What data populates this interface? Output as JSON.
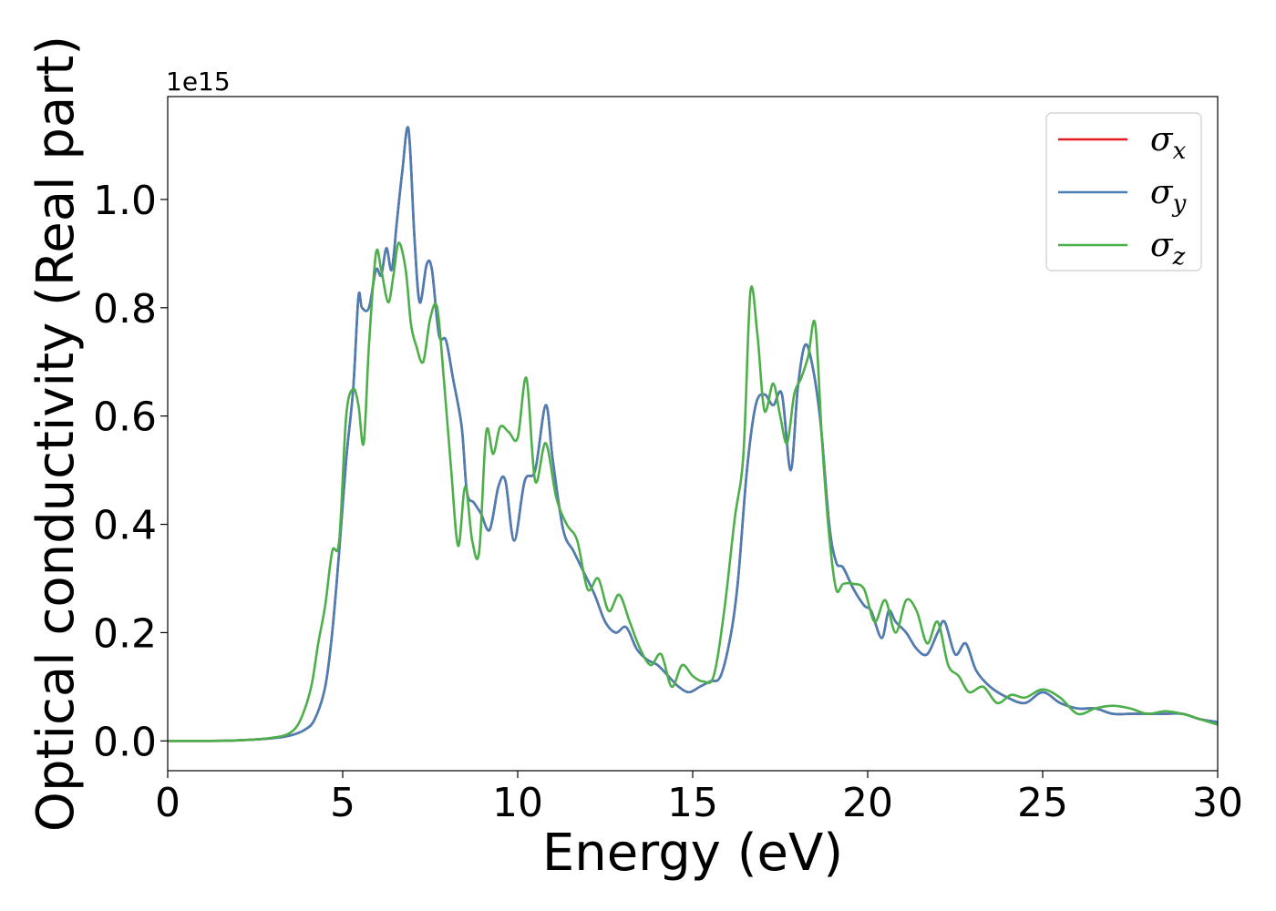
{
  "chart_data": {
    "type": "line",
    "xlabel": "Energy (eV)",
    "ylabel": "Optical conductivity (Real part)",
    "offset_text": "1e15",
    "xlim": [
      0,
      30
    ],
    "ylim": [
      -0.055,
      1.19
    ],
    "y_scale_factor": 1000000000000000.0,
    "xticks": [
      0,
      5,
      10,
      15,
      20,
      25,
      30
    ],
    "xtick_labels": [
      "0",
      "5",
      "10",
      "15",
      "20",
      "25",
      "30"
    ],
    "yticks": [
      0.0,
      0.2,
      0.4,
      0.6,
      0.8,
      1.0
    ],
    "ytick_labels": [
      "0.0",
      "0.2",
      "0.4",
      "0.6",
      "0.8",
      "1.0"
    ],
    "grid": false,
    "legend_position": "top-right",
    "series": [
      {
        "name": "σx",
        "symbol": "σ",
        "subscript": "x",
        "color": "#e41a1c",
        "x": [
          0,
          1,
          2,
          3,
          3.5,
          3.9,
          4.2,
          4.5,
          4.7,
          4.9,
          5.1,
          5.3,
          5.45,
          5.55,
          5.75,
          5.95,
          6.1,
          6.25,
          6.4,
          6.55,
          6.7,
          6.88,
          7.05,
          7.2,
          7.4,
          7.55,
          7.75,
          7.95,
          8.15,
          8.4,
          8.55,
          8.75,
          8.95,
          9.2,
          9.45,
          9.65,
          9.9,
          10.2,
          10.5,
          10.8,
          11.0,
          11.3,
          11.6,
          11.9,
          12.2,
          12.5,
          12.8,
          13.1,
          13.4,
          13.7,
          14.0,
          14.3,
          14.6,
          14.9,
          15.2,
          15.5,
          15.8,
          16.1,
          16.3,
          16.55,
          16.8,
          17.05,
          17.3,
          17.55,
          17.8,
          18.0,
          18.2,
          18.4,
          18.65,
          18.9,
          19.1,
          19.3,
          19.6,
          19.9,
          20.1,
          20.4,
          20.6,
          20.8,
          21.1,
          21.4,
          21.7,
          22.0,
          22.2,
          22.5,
          22.8,
          23.1,
          23.5,
          24.0,
          24.5,
          25.0,
          25.5,
          26.0,
          26.5,
          27.0,
          27.5,
          28.0,
          28.5,
          29.0,
          29.5,
          30.0
        ],
        "y": [
          0.0,
          0.0,
          0.001,
          0.005,
          0.01,
          0.02,
          0.04,
          0.1,
          0.2,
          0.35,
          0.52,
          0.65,
          0.82,
          0.8,
          0.8,
          0.87,
          0.86,
          0.91,
          0.87,
          0.96,
          1.05,
          1.13,
          0.93,
          0.81,
          0.88,
          0.87,
          0.75,
          0.74,
          0.67,
          0.58,
          0.46,
          0.44,
          0.42,
          0.39,
          0.47,
          0.48,
          0.37,
          0.48,
          0.5,
          0.62,
          0.52,
          0.39,
          0.35,
          0.31,
          0.27,
          0.22,
          0.2,
          0.21,
          0.17,
          0.15,
          0.14,
          0.12,
          0.1,
          0.09,
          0.1,
          0.11,
          0.12,
          0.2,
          0.3,
          0.5,
          0.62,
          0.64,
          0.62,
          0.64,
          0.5,
          0.65,
          0.73,
          0.7,
          0.59,
          0.4,
          0.33,
          0.32,
          0.28,
          0.25,
          0.24,
          0.19,
          0.24,
          0.22,
          0.2,
          0.17,
          0.16,
          0.2,
          0.22,
          0.16,
          0.18,
          0.13,
          0.1,
          0.08,
          0.07,
          0.09,
          0.07,
          0.06,
          0.06,
          0.05,
          0.05,
          0.05,
          0.05,
          0.05,
          0.04,
          0.035
        ]
      },
      {
        "name": "σy",
        "symbol": "σ",
        "subscript": "y",
        "color": "#4a7fb5",
        "x": [
          0,
          1,
          2,
          3,
          3.5,
          3.9,
          4.2,
          4.5,
          4.7,
          4.9,
          5.1,
          5.3,
          5.45,
          5.55,
          5.75,
          5.95,
          6.1,
          6.25,
          6.4,
          6.55,
          6.7,
          6.88,
          7.05,
          7.2,
          7.4,
          7.55,
          7.75,
          7.95,
          8.15,
          8.4,
          8.55,
          8.75,
          8.95,
          9.2,
          9.45,
          9.65,
          9.9,
          10.2,
          10.5,
          10.8,
          11.0,
          11.3,
          11.6,
          11.9,
          12.2,
          12.5,
          12.8,
          13.1,
          13.4,
          13.7,
          14.0,
          14.3,
          14.6,
          14.9,
          15.2,
          15.5,
          15.8,
          16.1,
          16.3,
          16.55,
          16.8,
          17.05,
          17.3,
          17.55,
          17.8,
          18.0,
          18.2,
          18.4,
          18.65,
          18.9,
          19.1,
          19.3,
          19.6,
          19.9,
          20.1,
          20.4,
          20.6,
          20.8,
          21.1,
          21.4,
          21.7,
          22.0,
          22.2,
          22.5,
          22.8,
          23.1,
          23.5,
          24.0,
          24.5,
          25.0,
          25.5,
          26.0,
          26.5,
          27.0,
          27.5,
          28.0,
          28.5,
          29.0,
          29.5,
          30.0
        ],
        "y": [
          0.0,
          0.0,
          0.001,
          0.005,
          0.01,
          0.02,
          0.04,
          0.1,
          0.2,
          0.35,
          0.52,
          0.65,
          0.82,
          0.8,
          0.8,
          0.87,
          0.86,
          0.91,
          0.87,
          0.96,
          1.05,
          1.13,
          0.93,
          0.81,
          0.88,
          0.87,
          0.75,
          0.74,
          0.67,
          0.58,
          0.46,
          0.44,
          0.42,
          0.39,
          0.47,
          0.48,
          0.37,
          0.48,
          0.5,
          0.62,
          0.52,
          0.39,
          0.35,
          0.31,
          0.27,
          0.22,
          0.2,
          0.21,
          0.17,
          0.15,
          0.14,
          0.12,
          0.1,
          0.09,
          0.1,
          0.11,
          0.12,
          0.2,
          0.3,
          0.5,
          0.62,
          0.64,
          0.62,
          0.64,
          0.5,
          0.65,
          0.73,
          0.7,
          0.59,
          0.4,
          0.33,
          0.32,
          0.28,
          0.25,
          0.24,
          0.19,
          0.24,
          0.22,
          0.2,
          0.17,
          0.16,
          0.2,
          0.22,
          0.16,
          0.18,
          0.13,
          0.1,
          0.08,
          0.07,
          0.09,
          0.07,
          0.06,
          0.06,
          0.05,
          0.05,
          0.05,
          0.05,
          0.05,
          0.04,
          0.035
        ]
      },
      {
        "name": "σz",
        "symbol": "σ",
        "subscript": "z",
        "color": "#4daf4a",
        "x": [
          0,
          1,
          2,
          3,
          3.5,
          3.8,
          4.1,
          4.3,
          4.5,
          4.7,
          4.9,
          5.1,
          5.3,
          5.45,
          5.6,
          5.75,
          5.95,
          6.1,
          6.3,
          6.45,
          6.6,
          6.8,
          6.95,
          7.1,
          7.3,
          7.5,
          7.7,
          7.9,
          8.1,
          8.3,
          8.5,
          8.7,
          8.9,
          9.1,
          9.3,
          9.5,
          9.75,
          10.0,
          10.25,
          10.5,
          10.8,
          11.1,
          11.4,
          11.7,
          12.0,
          12.3,
          12.6,
          12.9,
          13.2,
          13.5,
          13.8,
          14.1,
          14.4,
          14.7,
          15.0,
          15.3,
          15.6,
          15.9,
          16.2,
          16.45,
          16.65,
          16.85,
          17.05,
          17.3,
          17.5,
          17.7,
          17.9,
          18.1,
          18.3,
          18.5,
          18.7,
          18.9,
          19.1,
          19.3,
          19.6,
          19.9,
          20.2,
          20.5,
          20.8,
          21.1,
          21.4,
          21.7,
          22.0,
          22.3,
          22.6,
          22.9,
          23.3,
          23.7,
          24.1,
          24.5,
          25.0,
          25.5,
          26.0,
          26.5,
          27.0,
          27.5,
          28.0,
          28.5,
          29.0,
          29.5,
          30.0
        ],
        "y": [
          0.0,
          0.0,
          0.001,
          0.006,
          0.015,
          0.04,
          0.1,
          0.18,
          0.25,
          0.35,
          0.37,
          0.6,
          0.65,
          0.62,
          0.55,
          0.73,
          0.9,
          0.87,
          0.81,
          0.86,
          0.92,
          0.87,
          0.77,
          0.73,
          0.7,
          0.78,
          0.8,
          0.66,
          0.5,
          0.36,
          0.47,
          0.37,
          0.35,
          0.57,
          0.53,
          0.58,
          0.57,
          0.56,
          0.67,
          0.48,
          0.55,
          0.45,
          0.4,
          0.37,
          0.28,
          0.3,
          0.24,
          0.27,
          0.22,
          0.17,
          0.14,
          0.16,
          0.1,
          0.14,
          0.12,
          0.11,
          0.12,
          0.24,
          0.41,
          0.53,
          0.83,
          0.75,
          0.61,
          0.66,
          0.6,
          0.55,
          0.64,
          0.67,
          0.71,
          0.77,
          0.55,
          0.38,
          0.28,
          0.29,
          0.29,
          0.28,
          0.22,
          0.26,
          0.2,
          0.26,
          0.24,
          0.18,
          0.22,
          0.14,
          0.12,
          0.09,
          0.1,
          0.07,
          0.085,
          0.08,
          0.095,
          0.08,
          0.05,
          0.06,
          0.065,
          0.06,
          0.05,
          0.055,
          0.05,
          0.04,
          0.03
        ]
      }
    ]
  }
}
